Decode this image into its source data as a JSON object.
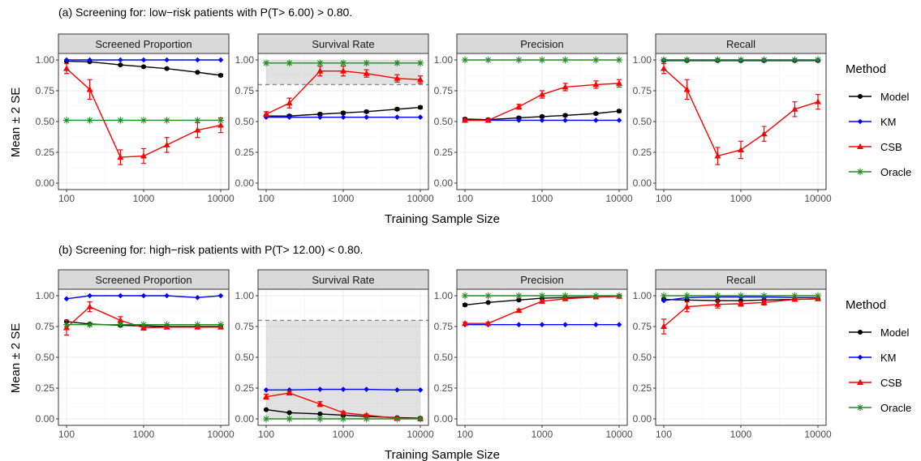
{
  "chart_data": {
    "type": "line",
    "xlabel": "Training Sample Size",
    "ylabel": "Mean ± 2 SE",
    "x": [
      100,
      200,
      500,
      1000,
      2000,
      5000,
      10000
    ],
    "x_ticks": [
      "100",
      "1000",
      "10000"
    ],
    "y_ticks": [
      "0.00",
      "0.25",
      "0.50",
      "0.75",
      "1.00"
    ],
    "ylim": [
      0,
      1
    ],
    "x_scale": "log",
    "legend": {
      "title": "Method",
      "placement": "right",
      "entries": [
        {
          "name": "Model",
          "color": "#000000",
          "marker": "circle"
        },
        {
          "name": "KM",
          "color": "#0000ff",
          "marker": "diamond"
        },
        {
          "name": "CSB",
          "color": "#ff0000",
          "marker": "triangle"
        },
        {
          "name": "Oracle",
          "color": "#228b22",
          "marker": "asterisk"
        }
      ]
    },
    "rows": [
      {
        "title": "(a) Screening for: low−risk patients with P(T> 6.00) > 0.80.",
        "panels": [
          {
            "title": "Screened Proportion",
            "series": [
              {
                "name": "Model",
                "values": [
                  0.99,
                  0.985,
                  0.96,
                  0.945,
                  0.93,
                  0.9,
                  0.875
                ],
                "err": [
                  0.005,
                  0.005,
                  0.005,
                  0.005,
                  0.005,
                  0.005,
                  0.01
                ]
              },
              {
                "name": "KM",
                "values": [
                  1.0,
                  1.0,
                  1.0,
                  1.0,
                  1.0,
                  1.0,
                  1.0
                ],
                "err": [
                  0,
                  0,
                  0,
                  0,
                  0,
                  0,
                  0
                ]
              },
              {
                "name": "CSB",
                "values": [
                  0.93,
                  0.76,
                  0.21,
                  0.22,
                  0.31,
                  0.43,
                  0.47
                ],
                "err": [
                  0.04,
                  0.08,
                  0.06,
                  0.06,
                  0.06,
                  0.06,
                  0.06
                ]
              },
              {
                "name": "Oracle",
                "values": [
                  0.51,
                  0.51,
                  0.51,
                  0.51,
                  0.51,
                  0.51,
                  0.51
                ],
                "err": [
                  0,
                  0,
                  0,
                  0,
                  0,
                  0,
                  0
                ]
              }
            ]
          },
          {
            "title": "Survival Rate",
            "threshold": 0.8,
            "shade": [
              0.8,
              1.0
            ],
            "series": [
              {
                "name": "Model",
                "values": [
                  0.545,
                  0.545,
                  0.56,
                  0.57,
                  0.58,
                  0.6,
                  0.615
                ],
                "err": [
                  0.01,
                  0.01,
                  0.01,
                  0.01,
                  0.01,
                  0.01,
                  0.01
                ]
              },
              {
                "name": "KM",
                "values": [
                  0.535,
                  0.535,
                  0.535,
                  0.535,
                  0.535,
                  0.535,
                  0.535
                ],
                "err": [
                  0,
                  0,
                  0,
                  0,
                  0,
                  0,
                  0
                ]
              },
              {
                "name": "CSB",
                "values": [
                  0.56,
                  0.65,
                  0.91,
                  0.91,
                  0.89,
                  0.85,
                  0.84
                ],
                "err": [
                  0.02,
                  0.04,
                  0.04,
                  0.04,
                  0.03,
                  0.03,
                  0.03
                ]
              },
              {
                "name": "Oracle",
                "values": [
                  0.975,
                  0.975,
                  0.975,
                  0.975,
                  0.975,
                  0.975,
                  0.975
                ],
                "err": [
                  0,
                  0,
                  0,
                  0,
                  0,
                  0,
                  0
                ]
              }
            ]
          },
          {
            "title": "Precision",
            "series": [
              {
                "name": "Model",
                "values": [
                  0.52,
                  0.515,
                  0.53,
                  0.54,
                  0.55,
                  0.565,
                  0.585
                ],
                "err": [
                  0.01,
                  0.01,
                  0.01,
                  0.01,
                  0.01,
                  0.01,
                  0.01
                ]
              },
              {
                "name": "KM",
                "values": [
                  0.51,
                  0.51,
                  0.51,
                  0.51,
                  0.51,
                  0.51,
                  0.51
                ],
                "err": [
                  0,
                  0,
                  0,
                  0,
                  0,
                  0,
                  0
                ]
              },
              {
                "name": "CSB",
                "values": [
                  0.51,
                  0.51,
                  0.62,
                  0.72,
                  0.78,
                  0.8,
                  0.81
                ],
                "err": [
                  0.01,
                  0.01,
                  0.02,
                  0.03,
                  0.03,
                  0.03,
                  0.03
                ]
              },
              {
                "name": "Oracle",
                "values": [
                  1.0,
                  1.0,
                  1.0,
                  1.0,
                  1.0,
                  1.0,
                  1.0
                ],
                "err": [
                  0,
                  0,
                  0,
                  0,
                  0,
                  0,
                  0
                ]
              }
            ]
          },
          {
            "title": "Recall",
            "series": [
              {
                "name": "Model",
                "values": [
                  0.995,
                  0.995,
                  0.995,
                  0.995,
                  0.995,
                  0.995,
                  0.995
                ],
                "err": [
                  0,
                  0,
                  0,
                  0,
                  0,
                  0,
                  0
                ]
              },
              {
                "name": "KM",
                "values": [
                  1.0,
                  1.0,
                  1.0,
                  1.0,
                  1.0,
                  1.0,
                  1.0
                ],
                "err": [
                  0,
                  0,
                  0,
                  0,
                  0,
                  0,
                  0
                ]
              },
              {
                "name": "CSB",
                "values": [
                  0.93,
                  0.76,
                  0.22,
                  0.27,
                  0.4,
                  0.6,
                  0.66
                ],
                "err": [
                  0.04,
                  0.08,
                  0.07,
                  0.07,
                  0.06,
                  0.06,
                  0.06
                ]
              },
              {
                "name": "Oracle",
                "values": [
                  1.0,
                  1.0,
                  1.0,
                  1.0,
                  1.0,
                  1.0,
                  1.0
                ],
                "err": [
                  0,
                  0,
                  0,
                  0,
                  0,
                  0,
                  0
                ]
              }
            ]
          }
        ]
      },
      {
        "title": "(b) Screening for: high−risk patients with P(T> 12.00) < 0.80.",
        "panels": [
          {
            "title": "Screened Proportion",
            "series": [
              {
                "name": "Model",
                "values": [
                  0.79,
                  0.77,
                  0.76,
                  0.755,
                  0.75,
                  0.75,
                  0.75
                ],
                "err": [
                  0.01,
                  0.005,
                  0.005,
                  0.005,
                  0.005,
                  0.005,
                  0.005
                ]
              },
              {
                "name": "KM",
                "values": [
                  0.975,
                  1.0,
                  1.0,
                  1.0,
                  1.0,
                  0.985,
                  1.0
                ],
                "err": [
                  0,
                  0,
                  0,
                  0,
                  0,
                  0,
                  0
                ]
              },
              {
                "name": "CSB",
                "values": [
                  0.74,
                  0.91,
                  0.8,
                  0.74,
                  0.745,
                  0.745,
                  0.745
                ],
                "err": [
                  0.06,
                  0.04,
                  0.03,
                  0.02,
                  0.01,
                  0.005,
                  0.005
                ]
              },
              {
                "name": "Oracle",
                "values": [
                  0.765,
                  0.765,
                  0.765,
                  0.765,
                  0.765,
                  0.765,
                  0.765
                ],
                "err": [
                  0,
                  0,
                  0,
                  0,
                  0,
                  0,
                  0
                ]
              }
            ]
          },
          {
            "title": "Survival Rate",
            "threshold": 0.8,
            "shade": [
              0.0,
              0.8
            ],
            "series": [
              {
                "name": "Model",
                "values": [
                  0.075,
                  0.05,
                  0.04,
                  0.03,
                  0.02,
                  0.01,
                  0.005
                ],
                "err": [
                  0.005,
                  0.005,
                  0.005,
                  0.005,
                  0.005,
                  0.005,
                  0.005
                ]
              },
              {
                "name": "KM",
                "values": [
                  0.235,
                  0.235,
                  0.24,
                  0.24,
                  0.24,
                  0.235,
                  0.235
                ],
                "err": [
                  0,
                  0,
                  0,
                  0,
                  0,
                  0,
                  0
                ]
              },
              {
                "name": "CSB",
                "values": [
                  0.18,
                  0.21,
                  0.12,
                  0.05,
                  0.03,
                  0.005,
                  0.0
                ],
                "err": [
                  0.02,
                  0.01,
                  0.02,
                  0.01,
                  0.01,
                  0.005,
                  0.005
                ]
              },
              {
                "name": "Oracle",
                "values": [
                  0.0,
                  0.0,
                  0.0,
                  0.0,
                  0.0,
                  0.0,
                  0.0
                ],
                "err": [
                  0,
                  0,
                  0,
                  0,
                  0,
                  0,
                  0
                ]
              }
            ]
          },
          {
            "title": "Precision",
            "series": [
              {
                "name": "Model",
                "values": [
                  0.925,
                  0.945,
                  0.965,
                  0.98,
                  0.985,
                  0.99,
                  0.995
                ],
                "err": [
                  0.01,
                  0.005,
                  0.005,
                  0.005,
                  0.005,
                  0.005,
                  0.005
                ]
              },
              {
                "name": "KM",
                "values": [
                  0.765,
                  0.765,
                  0.765,
                  0.765,
                  0.765,
                  0.765,
                  0.765
                ],
                "err": [
                  0,
                  0,
                  0,
                  0,
                  0,
                  0,
                  0
                ]
              },
              {
                "name": "CSB",
                "values": [
                  0.775,
                  0.775,
                  0.88,
                  0.955,
                  0.975,
                  0.99,
                  0.995
                ],
                "err": [
                  0.01,
                  0.01,
                  0.01,
                  0.01,
                  0.01,
                  0.005,
                  0.005
                ]
              },
              {
                "name": "Oracle",
                "values": [
                  1.0,
                  1.0,
                  1.0,
                  1.0,
                  1.0,
                  1.0,
                  1.0
                ],
                "err": [
                  0,
                  0,
                  0,
                  0,
                  0,
                  0,
                  0
                ]
              }
            ]
          },
          {
            "title": "Recall",
            "series": [
              {
                "name": "Model",
                "values": [
                  0.97,
                  0.965,
                  0.96,
                  0.96,
                  0.965,
                  0.97,
                  0.975
                ],
                "err": [
                  0.005,
                  0.005,
                  0.005,
                  0.005,
                  0.005,
                  0.005,
                  0.005
                ]
              },
              {
                "name": "KM",
                "values": [
                  0.96,
                  0.985,
                  0.99,
                  0.99,
                  0.99,
                  0.985,
                  0.985
                ],
                "err": [
                  0,
                  0,
                  0,
                  0,
                  0,
                  0,
                  0
                ]
              },
              {
                "name": "CSB",
                "values": [
                  0.75,
                  0.91,
                  0.93,
                  0.935,
                  0.945,
                  0.97,
                  0.975
                ],
                "err": [
                  0.06,
                  0.04,
                  0.03,
                  0.02,
                  0.02,
                  0.01,
                  0.01
                ]
              },
              {
                "name": "Oracle",
                "values": [
                  1.0,
                  1.0,
                  1.0,
                  1.0,
                  1.0,
                  1.0,
                  1.0
                ],
                "err": [
                  0,
                  0,
                  0,
                  0,
                  0,
                  0,
                  0
                ]
              }
            ]
          }
        ]
      }
    ]
  }
}
